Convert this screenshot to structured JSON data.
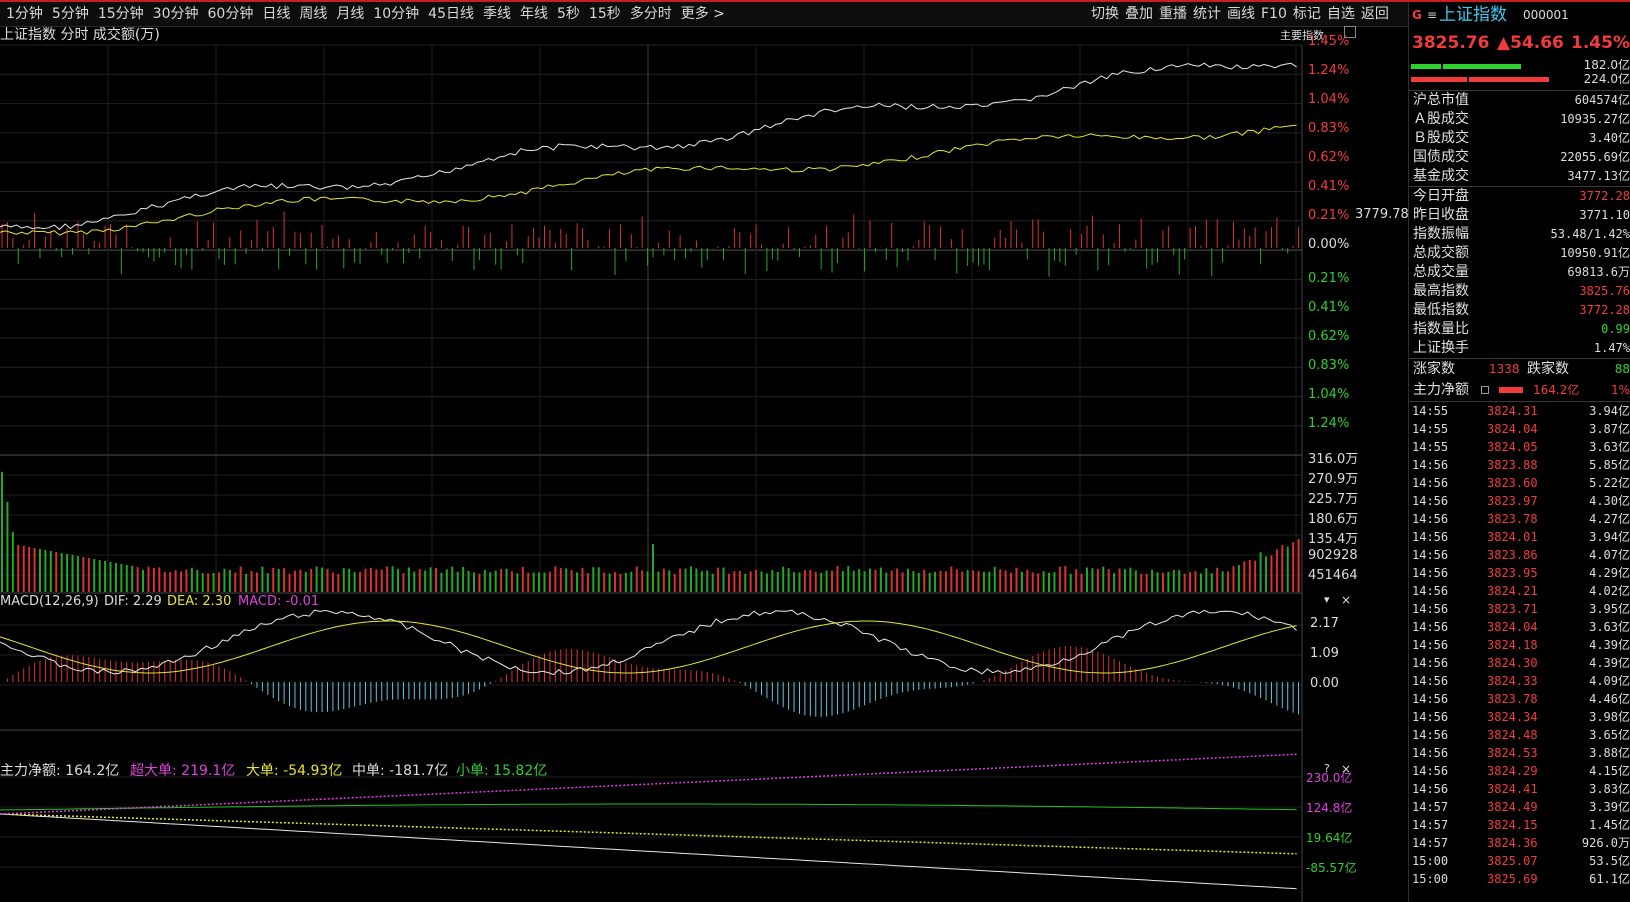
{
  "toolbar": {
    "periods": [
      "1分钟",
      "5分钟",
      "15分钟",
      "30分钟",
      "60分钟",
      "日线",
      "周线",
      "月线",
      "10分钟",
      "45日线",
      "季线",
      "年线",
      "5秒",
      "15秒",
      "多分时",
      "更多 >"
    ],
    "tools": [
      "切换",
      "叠加",
      "重播",
      "统计",
      "画线",
      "F10",
      "标记",
      "自选",
      "返回"
    ]
  },
  "main_chart": {
    "title": "上证指数  分时  成交额(万)",
    "index_button": "主要指数",
    "price_tag": "3779.78",
    "pct_labels_up": [
      "1.45%",
      "1.24%",
      "1.04%",
      "0.83%",
      "0.62%",
      "0.41%",
      "0.21%",
      "0.00%"
    ],
    "pct_labels_down": [
      "0.21%",
      "0.41%",
      "0.62%",
      "0.83%",
      "1.04%",
      "1.24%"
    ],
    "volume_labels": [
      "316.0万",
      "270.9万",
      "225.7万",
      "180.6万",
      "135.4万",
      "902928",
      "451464"
    ]
  },
  "macd": {
    "title": "MACD(12,26,9)",
    "dif_label": "DIF: 2.29",
    "dea_label": "DEA: 2.30",
    "macd_label": "MACD: -0.01",
    "axis": [
      "2.17",
      "1.09",
      "0.00"
    ]
  },
  "fund_flow": {
    "main_label": "主力净额: 164.2亿",
    "super_label": "超大单: 219.1亿",
    "large_label": "大单: -54.93亿",
    "medium_label": "中单: -181.7亿",
    "small_label": "小单: 15.82亿",
    "axis": [
      "230.0亿",
      "124.8亿",
      "19.64亿",
      "-85.57亿"
    ],
    "help": "?",
    "close": "×"
  },
  "side": {
    "logo": "G",
    "menu": "≡",
    "name": "上证指数",
    "code": "000001",
    "price": "3825.76",
    "change": "▲54.66",
    "change_pct": "1.45%",
    "buy_amount": "182.0亿",
    "sell_amount": "224.0亿",
    "stats": [
      {
        "k": "沪总市值",
        "v": "604574亿",
        "c": "#ddd"
      },
      {
        "k": "Ａ股成交",
        "v": "10935.27亿",
        "c": "#ddd"
      },
      {
        "k": "Ｂ股成交",
        "v": "3.40亿",
        "c": "#ddd"
      },
      {
        "k": "国债成交",
        "v": "22055.69亿",
        "c": "#ddd"
      },
      {
        "k": "基金成交",
        "v": "3477.13亿",
        "c": "#ddd"
      },
      {
        "k": "今日开盘",
        "v": "3772.28",
        "c": "#f23c3c"
      },
      {
        "k": "昨日收盘",
        "v": "3771.10",
        "c": "#ddd"
      },
      {
        "k": "指数振幅",
        "v": "53.48/1.42%",
        "c": "#ddd"
      },
      {
        "k": "总成交额",
        "v": "10950.91亿",
        "c": "#ddd"
      },
      {
        "k": "总成交量",
        "v": "69813.6万",
        "c": "#ddd"
      },
      {
        "k": "最高指数",
        "v": "3825.76",
        "c": "#f23c3c"
      },
      {
        "k": "最低指数",
        "v": "3772.28",
        "c": "#f23c3c"
      },
      {
        "k": "指数量比",
        "v": "0.99",
        "c": "#2fd12f"
      },
      {
        "k": "上证换手",
        "v": "1.47%",
        "c": "#ddd"
      }
    ],
    "up_label": "涨家数",
    "up_count": "1338",
    "down_label": "跌家数",
    "down_count": "88",
    "net_label": "主力净额",
    "net_value": "164.2亿",
    "net_pct": "1%",
    "trades": [
      [
        "14:55",
        "3824.31",
        "3.94亿"
      ],
      [
        "14:55",
        "3824.04",
        "3.87亿"
      ],
      [
        "14:55",
        "3824.05",
        "3.63亿"
      ],
      [
        "14:56",
        "3823.88",
        "5.85亿"
      ],
      [
        "14:56",
        "3823.60",
        "5.22亿"
      ],
      [
        "14:56",
        "3823.97",
        "4.30亿"
      ],
      [
        "14:56",
        "3823.78",
        "4.27亿"
      ],
      [
        "14:56",
        "3824.01",
        "3.94亿"
      ],
      [
        "14:56",
        "3823.86",
        "4.07亿"
      ],
      [
        "14:56",
        "3823.95",
        "4.29亿"
      ],
      [
        "14:56",
        "3824.21",
        "4.02亿"
      ],
      [
        "14:56",
        "3823.71",
        "3.95亿"
      ],
      [
        "14:56",
        "3824.04",
        "3.63亿"
      ],
      [
        "14:56",
        "3824.18",
        "4.39亿"
      ],
      [
        "14:56",
        "3824.30",
        "4.39亿"
      ],
      [
        "14:56",
        "3824.33",
        "4.09亿"
      ],
      [
        "14:56",
        "3823.78",
        "4.46亿"
      ],
      [
        "14:56",
        "3824.34",
        "3.98亿"
      ],
      [
        "14:56",
        "3824.48",
        "3.65亿"
      ],
      [
        "14:56",
        "3824.53",
        "3.88亿"
      ],
      [
        "14:56",
        "3824.29",
        "4.15亿"
      ],
      [
        "14:56",
        "3824.41",
        "3.83亿"
      ],
      [
        "14:57",
        "3824.49",
        "3.39亿"
      ],
      [
        "14:57",
        "3824.15",
        "1.45亿"
      ],
      [
        "14:57",
        "3824.36",
        "926.0万"
      ],
      [
        "15:00",
        "3825.07",
        "53.5亿"
      ],
      [
        "15:00",
        "3825.69",
        "61.1亿"
      ]
    ],
    "colors": {
      "up": "#f23c3c",
      "down": "#2fd12f",
      "accent": "#3fc8f0"
    }
  }
}
